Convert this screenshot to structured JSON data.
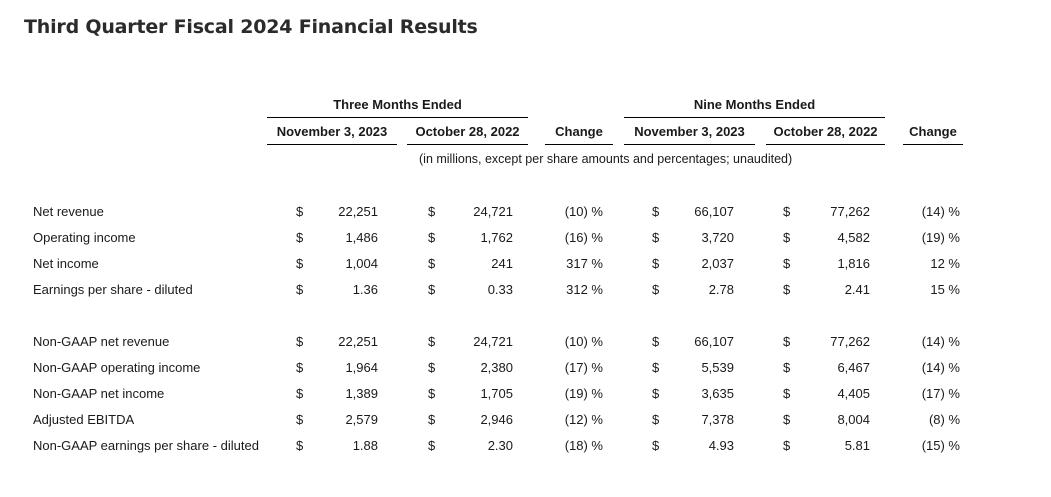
{
  "title": "Third Quarter Fiscal 2024 Financial Results",
  "table": {
    "group_headers": [
      "Three Months Ended",
      "Nine Months Ended"
    ],
    "column_headers": [
      "November 3, 2023",
      "October 28, 2022",
      "Change",
      "November 3, 2023",
      "October 28, 2022",
      "Change"
    ],
    "subheader": "(in millions, except per share amounts and percentages; unaudited)",
    "currency_symbol": "$",
    "rows_gaap": [
      {
        "label": "Net revenue",
        "q3_2023": "22,251",
        "q3_2022": "24,721",
        "q_change": "(10) %",
        "ytd_2023": "66,107",
        "ytd_2022": "77,262",
        "ytd_change": "(14) %"
      },
      {
        "label": "Operating income",
        "q3_2023": "1,486",
        "q3_2022": "1,762",
        "q_change": "(16) %",
        "ytd_2023": "3,720",
        "ytd_2022": "4,582",
        "ytd_change": "(19) %"
      },
      {
        "label": "Net income",
        "q3_2023": "1,004",
        "q3_2022": "241",
        "q_change": "317 %",
        "ytd_2023": "2,037",
        "ytd_2022": "1,816",
        "ytd_change": "12 %"
      },
      {
        "label": "Earnings per share - diluted",
        "q3_2023": "1.36",
        "q3_2022": "0.33",
        "q_change": "312 %",
        "ytd_2023": "2.78",
        "ytd_2022": "2.41",
        "ytd_change": "15 %"
      }
    ],
    "rows_non_gaap": [
      {
        "label": "Non-GAAP net revenue",
        "q3_2023": "22,251",
        "q3_2022": "24,721",
        "q_change": "(10) %",
        "ytd_2023": "66,107",
        "ytd_2022": "77,262",
        "ytd_change": "(14) %"
      },
      {
        "label": "Non-GAAP operating income",
        "q3_2023": "1,964",
        "q3_2022": "2,380",
        "q_change": "(17) %",
        "ytd_2023": "5,539",
        "ytd_2022": "6,467",
        "ytd_change": "(14) %"
      },
      {
        "label": "Non-GAAP net income",
        "q3_2023": "1,389",
        "q3_2022": "1,705",
        "q_change": "(19) %",
        "ytd_2023": "3,635",
        "ytd_2022": "4,405",
        "ytd_change": "(17) %"
      },
      {
        "label": "Adjusted EBITDA",
        "q3_2023": "2,579",
        "q3_2022": "2,946",
        "q_change": "(12) %",
        "ytd_2023": "7,378",
        "ytd_2022": "8,004",
        "ytd_change": "(8) %"
      },
      {
        "label": "Non-GAAP earnings per share - diluted",
        "q3_2023": "1.88",
        "q3_2022": "2.30",
        "q_change": "(18) %",
        "ytd_2023": "4.93",
        "ytd_2022": "5.81",
        "ytd_change": "(15) %"
      }
    ]
  }
}
